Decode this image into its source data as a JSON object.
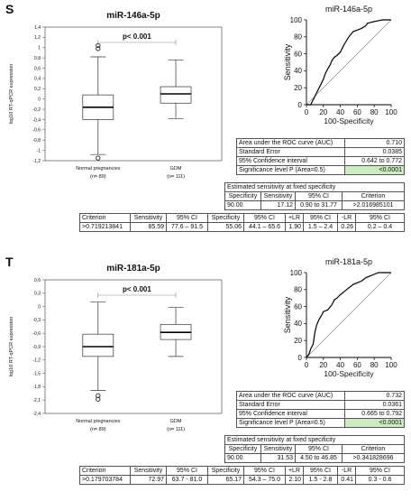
{
  "colors": {
    "box_fill": "#ffffff",
    "roc_line": "#000000",
    "diagonal": "#9a9a9a",
    "highlight": "#cdebc2"
  },
  "panels": [
    {
      "letter": "S",
      "box": {
        "title": "miR-146a-5p",
        "p_text": "p< 0.001",
        "ylabel": "log10 RT-qPCR expression",
        "ticks": [
          "-1,2",
          "-1",
          "-0,8",
          "-0,6",
          "-0,4",
          "-0,2",
          "0",
          "0,2",
          "0,4",
          "0,6",
          "0,8",
          "1",
          "1,2",
          "1,4"
        ],
        "groups": [
          {
            "name": "Normal pregnancies",
            "n": "(n= 89)"
          },
          {
            "name": "GDM",
            "n": "(n= 111)"
          }
        ]
      },
      "roc": {
        "title": "miR-146a-5p",
        "xlabel": "100-Specificity",
        "ylabel": "Sensitivity",
        "ticks": [
          "0",
          "20",
          "40",
          "60",
          "80",
          "100"
        ]
      },
      "stats": [
        [
          "Area under the ROC curve (AUC)",
          "0.710"
        ],
        [
          "Standard Error",
          "0.0385"
        ],
        [
          "95% Confidence interval",
          "0.642 to 0.772"
        ],
        [
          "Significance level P (Area=0.5)",
          "<0.0001"
        ]
      ],
      "est_title": "Estimated sensitivity at fixed specificity",
      "est_head": [
        "Specificity",
        "Sensitivity",
        "95% CI",
        "Criterion"
      ],
      "est_row": [
        "90.00",
        "17.12",
        "0.90 to 31.77",
        ">2.016985101"
      ],
      "crit_head": [
        "Criterion",
        "Sensitivity",
        "95% CI",
        "Specificity",
        "95% CI",
        "+LR",
        "95% CI",
        "-LR",
        "95% CI"
      ],
      "crit_row": [
        ">0.719213841",
        "85.59",
        "77.6 – 91.5",
        "55.06",
        "44.1 – 65.6",
        "1.90",
        "1.5 – 2.4",
        "0.26",
        "0.2 – 0.4"
      ]
    },
    {
      "letter": "T",
      "box": {
        "title": "miR-181a-5p",
        "p_text": "p< 0.001",
        "ylabel": "log10 RT-qPCR expression",
        "ticks": [
          "-2,4",
          "-2,1",
          "-1,8",
          "-1,5",
          "-1,2",
          "-0,9",
          "-0,6",
          "-0,3",
          "0",
          "0,3",
          "0,6"
        ],
        "groups": [
          {
            "name": "Normal pregnancies",
            "n": "(n= 89)"
          },
          {
            "name": "GDM",
            "n": "(n= 111)"
          }
        ]
      },
      "roc": {
        "title": "miR-181a-5p",
        "xlabel": "100-Specificity",
        "ylabel": "Sensitivity",
        "ticks": [
          "0",
          "20",
          "40",
          "60",
          "80",
          "100"
        ]
      },
      "stats": [
        [
          "Area under the ROC curve (AUC)",
          "0.732"
        ],
        [
          "Standard Error",
          "0.0361"
        ],
        [
          "95% Confidence interval",
          "0.665 to 0.792"
        ],
        [
          "Significance level P (Area=0.5)",
          "<0.0001"
        ]
      ],
      "est_title": "Estimated sensitivity at fixed specificity",
      "est_head": [
        "Specificity",
        "Sensitivity",
        "95% CI",
        "Criterion"
      ],
      "est_row": [
        "90.00",
        "31.53",
        "4.50 to 46.85",
        ">0.341828696"
      ],
      "crit_head": [
        "Criterion",
        "Sensitivity",
        "95% CI",
        "Specificity",
        "95% CI",
        "+LR",
        "95% CI",
        "-LR",
        "95% CI"
      ],
      "crit_row": [
        ">0.179703784",
        "72.97",
        "63.7 - 81.0",
        "65.17",
        "54.3 – 75.0",
        "2.10",
        "1.5 - 2.8",
        "0.41",
        "0.3 - 0.6"
      ]
    }
  ],
  "chart_data": [
    {
      "type": "box",
      "title": "miR-146a-5p",
      "ylabel": "log10 RT-qPCR expression",
      "ylim": [
        -1.2,
        1.4
      ],
      "categories": [
        "Normal pregnancies",
        "GDM"
      ],
      "boxes": [
        {
          "whisker_low": -1.08,
          "q1": -0.4,
          "median": -0.16,
          "q3": 0.08,
          "whisker_high": 0.82,
          "outliers": [
            -1.15,
            0.98,
            1.04
          ]
        },
        {
          "whisker_low": -0.38,
          "q1": -0.08,
          "median": 0.1,
          "q3": 0.24,
          "whisker_high": 0.76,
          "outliers": []
        }
      ]
    },
    {
      "type": "line",
      "title": "miR-146a-5p",
      "xlabel": "100-Specificity",
      "ylabel": "Sensitivity",
      "xlim": [
        0,
        100
      ],
      "ylim": [
        0,
        100
      ],
      "x": [
        0,
        5,
        8,
        10,
        12,
        15,
        18,
        20,
        22,
        25,
        28,
        30,
        33,
        36,
        40,
        44,
        47,
        50,
        55,
        60,
        65,
        70,
        72,
        76,
        80,
        85,
        90,
        93,
        96,
        100
      ],
      "y": [
        0,
        0,
        6,
        10,
        14,
        20,
        26,
        30,
        36,
        42,
        47,
        52,
        56,
        58,
        62,
        70,
        75,
        80,
        86,
        88,
        90,
        93,
        96,
        97,
        98,
        99,
        100,
        100,
        100,
        100
      ]
    },
    {
      "type": "box",
      "title": "miR-181a-5p",
      "ylabel": "log10 RT-qPCR expression",
      "ylim": [
        -2.4,
        0.6
      ],
      "categories": [
        "Normal pregnancies",
        "GDM"
      ],
      "boxes": [
        {
          "whisker_low": -1.88,
          "q1": -1.12,
          "median": -0.9,
          "q3": -0.62,
          "whisker_high": 0.1,
          "outliers": [
            -2.0,
            -2.08
          ]
        },
        {
          "whisker_low": -1.12,
          "q1": -0.74,
          "median": -0.58,
          "q3": -0.4,
          "whisker_high": -0.02,
          "outliers": []
        }
      ]
    },
    {
      "type": "line",
      "title": "miR-181a-5p",
      "xlabel": "100-Specificity",
      "ylabel": "Sensitivity",
      "xlim": [
        0,
        100
      ],
      "ylim": [
        0,
        100
      ],
      "x": [
        0,
        3,
        5,
        8,
        10,
        12,
        15,
        18,
        20,
        25,
        30,
        33,
        36,
        40,
        45,
        50,
        55,
        60,
        65,
        70,
        75,
        80,
        85,
        90,
        95,
        100
      ],
      "y": [
        0,
        4,
        10,
        16,
        30,
        38,
        45,
        50,
        54,
        56,
        62,
        68,
        70,
        74,
        78,
        82,
        86,
        88,
        90,
        94,
        96,
        98,
        100,
        100,
        100,
        100
      ]
    }
  ]
}
